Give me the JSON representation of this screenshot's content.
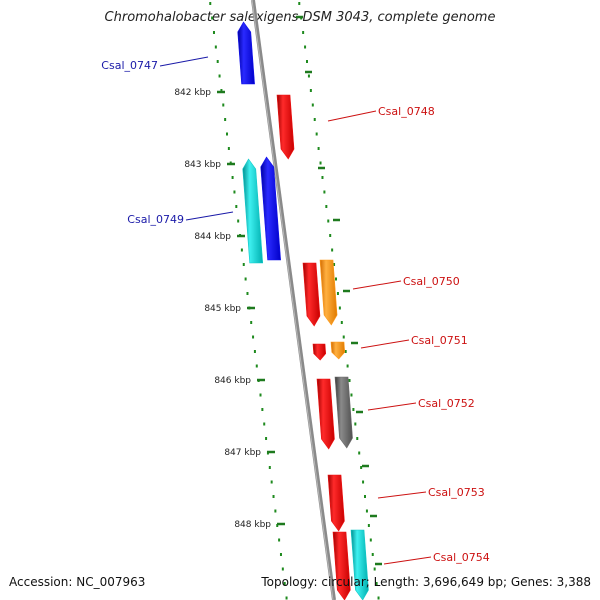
{
  "title": "Chromohalobacter salexigens DSM 3043, complete genome",
  "footer": {
    "accession": "Accession: NC_007963",
    "summary": "Topology: circular; Length: 3,696,649 bp; Genes: 3,388"
  },
  "colors": {
    "backbone": "#8a8a8a",
    "ticks": "#1e7a1e",
    "dots": "#1e8a1e",
    "label_left": "#1a1aa8",
    "label_right": "#cc1111",
    "red": "#ee1111",
    "blue": "#1111ee",
    "cyan": "#11c8c8",
    "orange": "#ff9a1a",
    "gray": "#6a6a6a"
  },
  "scale": {
    "ticks": [
      "842 kbp",
      "843 kbp",
      "844 kbp",
      "845 kbp",
      "846 kbp",
      "847 kbp",
      "848 kbp"
    ]
  },
  "features": [
    {
      "id": "Csal_0747",
      "strand": "-",
      "color": "blue"
    },
    {
      "id": "Csal_0748",
      "strand": "+",
      "color": "red"
    },
    {
      "id": "Csal_0749a",
      "strand": "-",
      "color": "cyan"
    },
    {
      "id": "Csal_0749",
      "strand": "-",
      "color": "blue"
    },
    {
      "id": "Csal_0750",
      "strand": "+",
      "color": "red"
    },
    {
      "id": "Csal_0750b",
      "strand": "+",
      "color": "orange"
    },
    {
      "id": "Csal_0751",
      "strand": "+",
      "color": "red"
    },
    {
      "id": "Csal_0751b",
      "strand": "+",
      "color": "orange"
    },
    {
      "id": "Csal_0752",
      "strand": "+",
      "color": "red"
    },
    {
      "id": "Csal_0752b",
      "strand": "+",
      "color": "gray"
    },
    {
      "id": "Csal_0753",
      "strand": "+",
      "color": "red"
    },
    {
      "id": "Csal_0754",
      "strand": "+",
      "color": "red"
    },
    {
      "id": "Csal_0754b",
      "strand": "+",
      "color": "cyan"
    }
  ],
  "labels": [
    {
      "text": "Csal_0747",
      "side": "left"
    },
    {
      "text": "Csal_0748",
      "side": "right"
    },
    {
      "text": "Csal_0749",
      "side": "left"
    },
    {
      "text": "Csal_0750",
      "side": "right"
    },
    {
      "text": "Csal_0751",
      "side": "right"
    },
    {
      "text": "Csal_0752",
      "side": "right"
    },
    {
      "text": "Csal_0753",
      "side": "right"
    },
    {
      "text": "Csal_0754",
      "side": "right"
    }
  ]
}
